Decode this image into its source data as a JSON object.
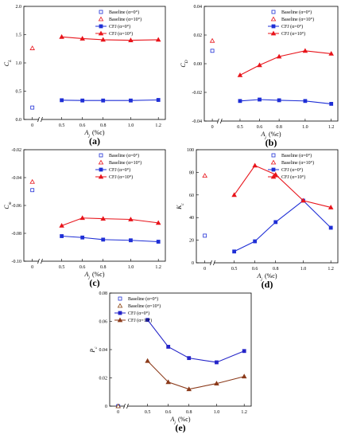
{
  "chart_data": [
    {
      "id": "a",
      "type": "line",
      "panel_label": "(a)",
      "ylabel": "C_L",
      "xlabel": "A_j (%c)",
      "ylim": [
        0.0,
        2.0
      ],
      "yticks": [
        "0.0",
        "0.5",
        "1.0",
        "1.5",
        "2.0"
      ],
      "xticks": [
        "0",
        "0.5",
        "0.6",
        "0.8",
        "1.0",
        "1.2"
      ],
      "baseline": [
        {
          "name": "Baseline (α=0°)",
          "x": 0,
          "y": 0.21,
          "color": "#1f2fd6",
          "marker": "square"
        },
        {
          "name": "Baseline (α=10°)",
          "x": 0,
          "y": 1.26,
          "color": "#e8141b",
          "marker": "triangle"
        }
      ],
      "series": [
        {
          "name": "CFJ (α=0°)",
          "color": "#1f2fd6",
          "marker": "square",
          "x": [
            0.5,
            0.65,
            0.8,
            1.0,
            1.2
          ],
          "y": [
            0.34,
            0.335,
            0.335,
            0.335,
            0.345
          ]
        },
        {
          "name": "CFJ (α=10°)",
          "color": "#e8141b",
          "marker": "triangle",
          "x": [
            0.5,
            0.65,
            0.8,
            1.0,
            1.2
          ],
          "y": [
            1.46,
            1.43,
            1.41,
            1.4,
            1.41
          ]
        }
      ],
      "legend": "top-right"
    },
    {
      "id": "b",
      "type": "line",
      "panel_label": "(b)",
      "ylabel": "C_D",
      "xlabel": "A_j (%c)",
      "ylim": [
        -0.04,
        0.04
      ],
      "yticks": [
        "-0.04",
        "-0.02",
        "0.00",
        "0.02",
        "0.04"
      ],
      "xticks": [
        "0",
        "0.5",
        "0.6",
        "0.8",
        "1.0",
        "1.2"
      ],
      "baseline": [
        {
          "name": "Baseline (α=0°)",
          "x": 0,
          "y": 0.009,
          "color": "#1f2fd6",
          "marker": "square"
        },
        {
          "name": "Baseline (α=10°)",
          "x": 0,
          "y": 0.016,
          "color": "#e8141b",
          "marker": "triangle"
        }
      ],
      "series": [
        {
          "name": "CFJ (α=0°)",
          "color": "#1f2fd6",
          "marker": "square",
          "x": [
            0.5,
            0.65,
            0.8,
            1.0,
            1.2
          ],
          "y": [
            -0.026,
            -0.025,
            -0.0255,
            -0.026,
            -0.028
          ]
        },
        {
          "name": "CFJ (α=10°)",
          "color": "#e8141b",
          "marker": "triangle",
          "x": [
            0.5,
            0.65,
            0.8,
            1.0,
            1.2
          ],
          "y": [
            -0.008,
            -0.001,
            0.005,
            0.009,
            0.007
          ]
        }
      ],
      "legend": "top-right"
    },
    {
      "id": "c",
      "type": "line",
      "panel_label": "(c)",
      "ylabel": "C_m",
      "xlabel": "A_j (%c)",
      "ylim": [
        -0.1,
        -0.02
      ],
      "yticks": [
        "-0.10",
        "-0.08",
        "-0.06",
        "-0.04",
        "-0.02"
      ],
      "xticks": [
        "0",
        "0.5",
        "0.6",
        "0.8",
        "1.0",
        "1.2"
      ],
      "baseline": [
        {
          "name": "Baseline (α=0°)",
          "x": 0,
          "y": -0.049,
          "color": "#1f2fd6",
          "marker": "square"
        },
        {
          "name": "Baseline (α=10°)",
          "x": 0,
          "y": -0.043,
          "color": "#e8141b",
          "marker": "triangle"
        }
      ],
      "series": [
        {
          "name": "CFJ (α=0°)",
          "color": "#1f2fd6",
          "marker": "square",
          "x": [
            0.5,
            0.65,
            0.8,
            1.0,
            1.2
          ],
          "y": [
            -0.082,
            -0.083,
            -0.0845,
            -0.085,
            -0.086
          ]
        },
        {
          "name": "CFJ (α=10°)",
          "color": "#e8141b",
          "marker": "triangle",
          "x": [
            0.5,
            0.65,
            0.8,
            1.0,
            1.2
          ],
          "y": [
            -0.0745,
            -0.069,
            -0.0695,
            -0.07,
            -0.0725
          ]
        }
      ],
      "legend": "top-right"
    },
    {
      "id": "d",
      "type": "line",
      "panel_label": "(d)",
      "ylabel": "K_c",
      "xlabel": "A_j (%c)",
      "ylim": [
        0,
        100
      ],
      "yticks": [
        "0",
        "20",
        "40",
        "60",
        "80",
        "100"
      ],
      "xticks": [
        "0",
        "0.5",
        "0.6",
        "0.8",
        "1.0",
        "1.2"
      ],
      "baseline": [
        {
          "name": "Baseline (α=0°)",
          "x": 0,
          "y": 24,
          "color": "#1f2fd6",
          "marker": "square"
        },
        {
          "name": "Baseline (α=10°)",
          "x": 0,
          "y": 77,
          "color": "#e8141b",
          "marker": "triangle"
        }
      ],
      "series": [
        {
          "name": "CFJ (α=0°)",
          "color": "#1f2fd6",
          "marker": "square",
          "x": [
            0.5,
            0.65,
            0.8,
            1.0,
            1.2
          ],
          "y": [
            10,
            19,
            36,
            55,
            31
          ]
        },
        {
          "name": "CFJ (α=10°)",
          "color": "#e8141b",
          "marker": "triangle",
          "x": [
            0.5,
            0.65,
            0.8,
            1.0,
            1.2
          ],
          "y": [
            60,
            86,
            78,
            55,
            49
          ]
        }
      ],
      "legend": "top-right"
    },
    {
      "id": "e",
      "type": "line",
      "panel_label": "(e)",
      "ylabel": "P_c",
      "xlabel": "A_j (%c)",
      "ylim": [
        0,
        0.08
      ],
      "yticks": [
        "0",
        "0.02",
        "0.04",
        "0.06",
        "0.08"
      ],
      "xticks": [
        "0",
        "0.5",
        "0.6",
        "0.8",
        "1.0",
        "1.2"
      ],
      "baseline": [
        {
          "name": "Baseline (α=0°)",
          "x": 0,
          "y": 0,
          "color": "#1f2fd6",
          "marker": "square"
        },
        {
          "name": "Baseline (α=10°)",
          "x": 0,
          "y": 0,
          "color": "#8b4513",
          "marker": "triangle"
        }
      ],
      "series": [
        {
          "name": "CFJ (α=0°)",
          "color": "#2424c8",
          "marker": "square",
          "x": [
            0.5,
            0.65,
            0.8,
            1.0,
            1.2
          ],
          "y": [
            0.061,
            0.042,
            0.034,
            0.031,
            0.039
          ]
        },
        {
          "name": "CFJ (α=10°)",
          "color": "#8b3a1a",
          "marker": "triangle",
          "x": [
            0.5,
            0.65,
            0.8,
            1.0,
            1.2
          ],
          "y": [
            0.032,
            0.017,
            0.012,
            0.016,
            0.021
          ]
        }
      ],
      "legend": "top-left"
    }
  ]
}
